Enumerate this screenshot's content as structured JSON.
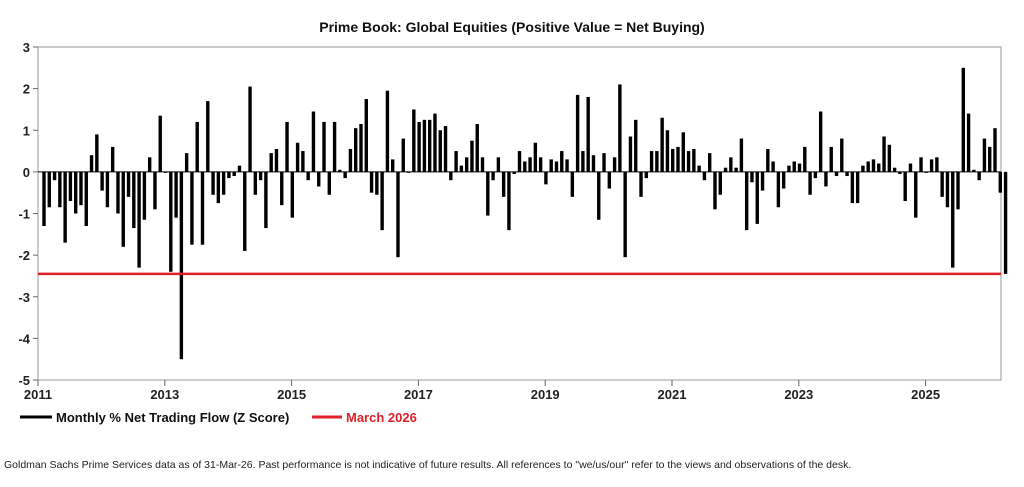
{
  "chart_data": {
    "type": "bar",
    "title": "Prime Book: Global Equities (Positive Value = Net Buying)",
    "xlabel": "",
    "ylabel": "",
    "ylim": [
      -5,
      3
    ],
    "yticks": [
      3,
      2,
      1,
      0,
      -1,
      -2,
      -3,
      -4,
      -5
    ],
    "xticks": [
      "2011",
      "2013",
      "2015",
      "2017",
      "2019",
      "2021",
      "2023",
      "2025"
    ],
    "start": "2011-01",
    "end": "2026-03",
    "grid": false,
    "legend_position": "bottom-left",
    "series": [
      {
        "name": "Monthly % Net Trading Flow (Z Score)",
        "color": "#000000",
        "values": [
          -1.3,
          -0.85,
          -0.2,
          -0.85,
          -1.7,
          -0.7,
          -1.0,
          -0.8,
          -1.3,
          0.4,
          0.9,
          -0.45,
          -0.85,
          0.6,
          -1.0,
          -1.8,
          -0.6,
          -1.35,
          -2.3,
          -1.15,
          0.35,
          -0.9,
          1.35,
          0.0,
          -2.4,
          -1.1,
          -4.5,
          0.45,
          -1.75,
          1.2,
          -1.75,
          1.7,
          -0.55,
          -0.75,
          -0.55,
          -0.15,
          -0.1,
          0.15,
          -1.9,
          2.05,
          -0.55,
          -0.2,
          -1.35,
          0.45,
          0.55,
          -0.8,
          1.2,
          -1.1,
          0.7,
          0.5,
          -0.2,
          1.45,
          -0.35,
          1.2,
          -0.55,
          1.2,
          0.05,
          -0.15,
          0.55,
          1.05,
          1.15,
          1.75,
          -0.5,
          -0.55,
          -1.4,
          1.95,
          0.3,
          -2.05,
          0.8,
          0.0,
          1.5,
          1.2,
          1.25,
          1.25,
          1.4,
          1.0,
          1.1,
          -0.2,
          0.5,
          0.15,
          0.35,
          0.75,
          1.15,
          0.35,
          -1.05,
          -0.2,
          0.35,
          -0.6,
          -1.4,
          -0.05,
          0.5,
          0.25,
          0.35,
          0.7,
          0.35,
          -0.3,
          0.3,
          0.25,
          0.5,
          0.3,
          -0.6,
          1.85,
          0.5,
          1.8,
          0.4,
          -1.15,
          0.45,
          -0.4,
          0.35,
          2.1,
          -2.05,
          0.85,
          1.25,
          -0.6,
          -0.15,
          0.5,
          0.5,
          1.3,
          1.0,
          0.55,
          0.6,
          0.95,
          0.5,
          0.55,
          0.15,
          -0.2,
          0.45,
          -0.9,
          -0.55,
          0.1,
          0.35,
          0.1,
          0.8,
          -1.4,
          -0.25,
          -1.25,
          -0.45,
          0.55,
          0.25,
          -0.85,
          -0.4,
          0.15,
          0.25,
          0.2,
          0.6,
          -0.55,
          -0.15,
          1.45,
          -0.35,
          0.6,
          -0.1,
          0.8,
          -0.1,
          -0.75,
          -0.75,
          0.15,
          0.25,
          0.3,
          0.2,
          0.85,
          0.65,
          0.1,
          -0.05,
          -0.7,
          0.2,
          -1.1,
          0.35,
          0.0,
          0.3,
          0.35,
          -0.6,
          -0.85,
          -2.3,
          -0.9,
          2.5,
          1.4,
          0.05,
          -0.2,
          0.8,
          0.6,
          1.05,
          -0.5,
          -2.45
        ]
      }
    ],
    "reference_line": {
      "name": "March 2026",
      "value": -2.45,
      "color": "#e0202a"
    }
  },
  "footer": "Goldman Sachs Prime Services data as of 31-Mar-26. Past performance is not indicative of future results. All references to \"we/us/our\" refer to the views and observations of the desk."
}
